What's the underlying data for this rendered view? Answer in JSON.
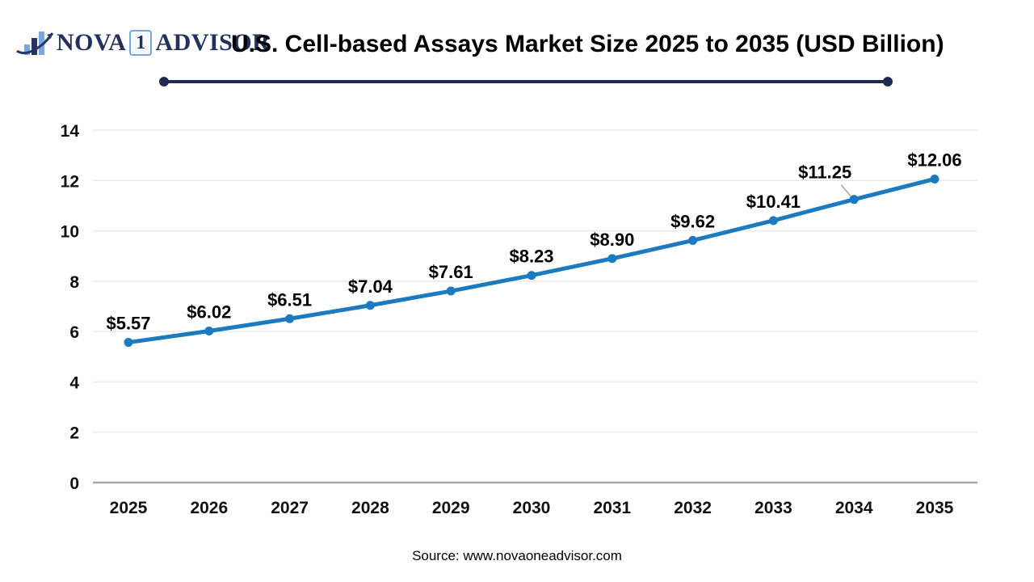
{
  "logo": {
    "nova": "NOVA",
    "one": "1",
    "advisor": "ADVISOR"
  },
  "header": {
    "title": "U.S. Cell-based Assays Market Size 2025 to 2035 (USD Billion)"
  },
  "source": {
    "text": "Source: www.novaoneadvisor.com"
  },
  "colors": {
    "accent_navy": "#1f2a52",
    "line_blue": "#1b7ac0",
    "logo_light_blue": "#7ba7d8",
    "grid_gray": "#e9e9e9",
    "axis_gray": "#a9a9a9"
  },
  "chart_data": {
    "type": "line",
    "title": "U.S. Cell-based Assays Market Size 2025 to 2035 (USD Billion)",
    "categories": [
      "2025",
      "2026",
      "2027",
      "2028",
      "2029",
      "2030",
      "2031",
      "2032",
      "2033",
      "2034",
      "2035"
    ],
    "values": [
      5.57,
      6.02,
      6.51,
      7.04,
      7.61,
      8.23,
      8.9,
      9.62,
      10.41,
      11.25,
      12.06
    ],
    "point_labels": [
      "$5.57",
      "$6.02",
      "$6.51",
      "$7.04",
      "$7.61",
      "$8.23",
      "$8.90",
      "$9.62",
      "$10.41",
      "$11.25",
      "$12.06"
    ],
    "xlabel": "",
    "ylabel": "",
    "ylim": [
      0,
      14
    ],
    "yticks": [
      0,
      2,
      4,
      6,
      8,
      10,
      12,
      14
    ],
    "grid": true,
    "legend_position": "none",
    "line_color": "#1b7ac0",
    "marker": "circle"
  }
}
